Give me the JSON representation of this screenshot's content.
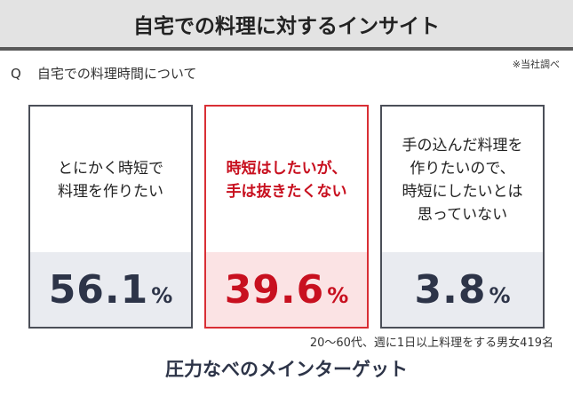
{
  "header": {
    "title": "自宅での料理に対するインサイト"
  },
  "question": {
    "marker": "Q",
    "text": "自宅での料理時間について"
  },
  "note": "※当社調べ",
  "cards": [
    {
      "label": "とにかく時短で\n料理を作りたい",
      "value": "56.1",
      "unit": "%"
    },
    {
      "label": "時短はしたいが、\n手は抜きたくない",
      "value": "39.6",
      "unit": "%"
    },
    {
      "label": "手の込んだ料理を\n作りたいので、\n時短にしたいとは\n思っていない",
      "value": "3.8",
      "unit": "%"
    }
  ],
  "sample": "20～60代、週に1日以上料理をする男女419名",
  "target": "圧力なべのメインターゲット",
  "colors": {
    "accent": "#c8101f",
    "dark": "#2d3448",
    "value_bg": "#e9ebf0",
    "accent_bg": "#fbe3e4"
  }
}
